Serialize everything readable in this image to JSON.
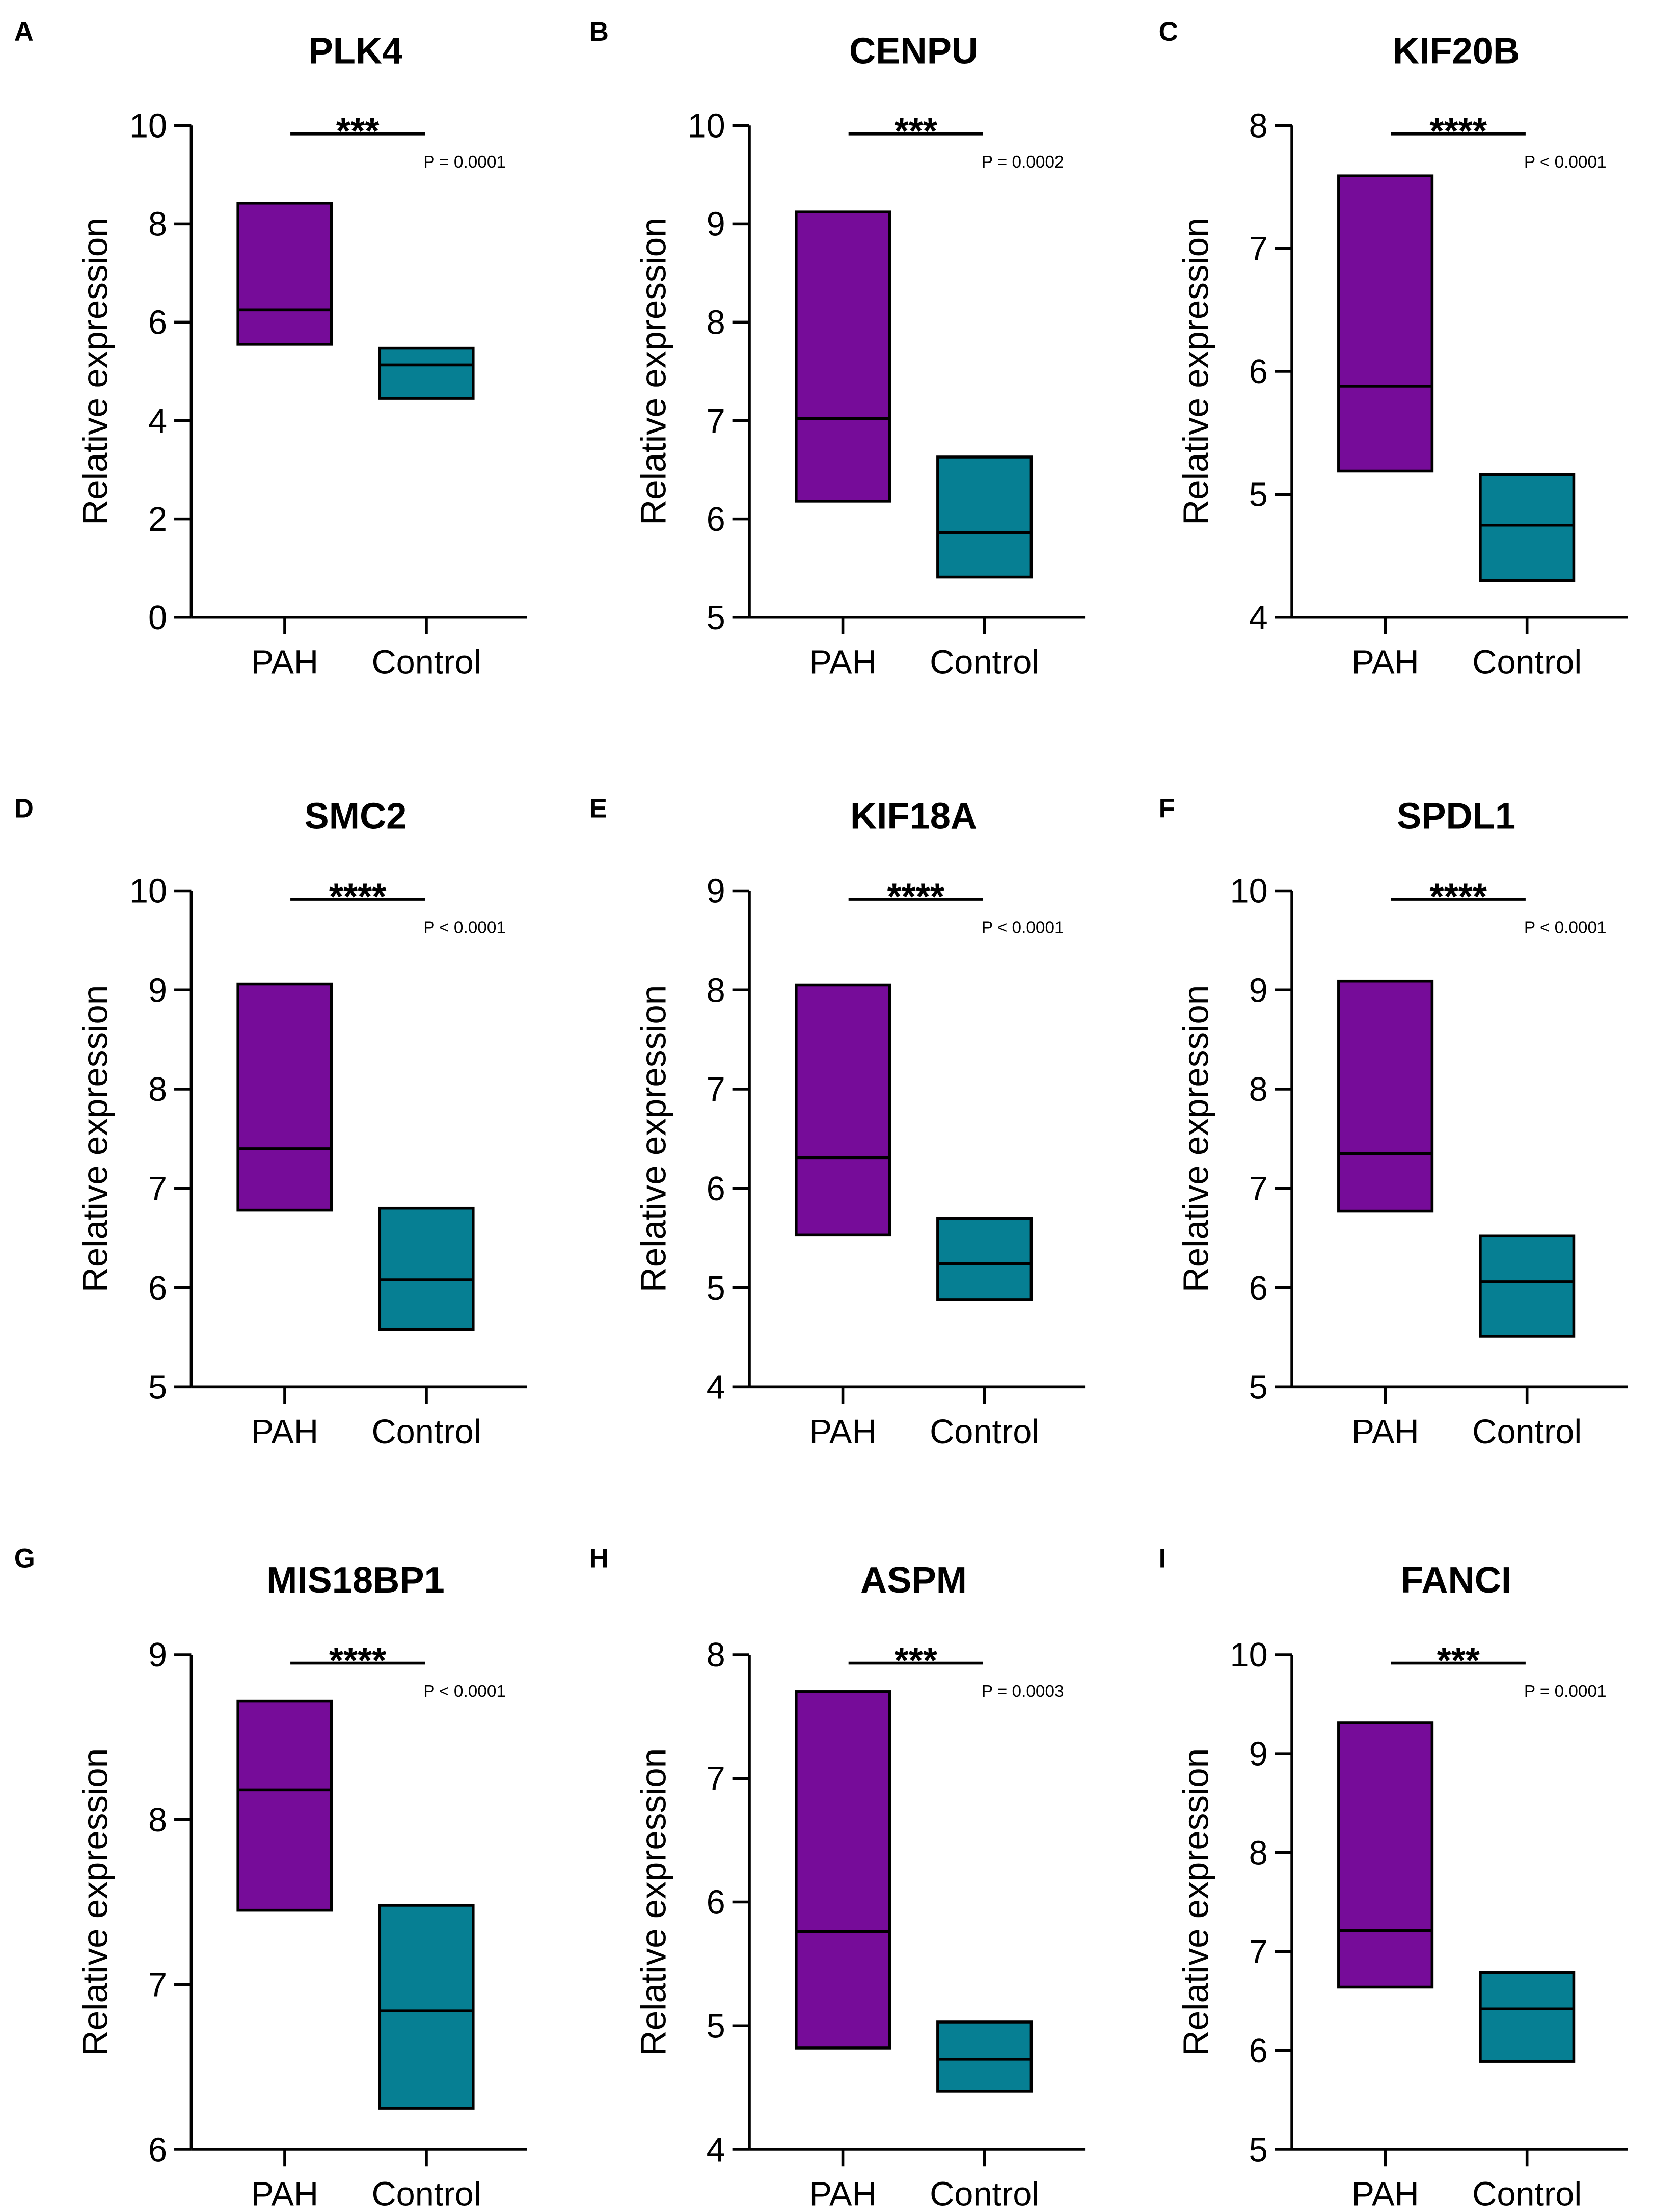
{
  "colors": [
    "#760C99",
    "#067F93"
  ],
  "chart_data": [
    {
      "panel": "A",
      "type": "bar",
      "title": "PLK4",
      "ylabel": "Relative expression",
      "categories": [
        "PAH",
        "Control"
      ],
      "values": [
        {
          "min": 5.55,
          "max": 8.42,
          "median": 6.25
        },
        {
          "min": 4.45,
          "max": 5.47,
          "median": 5.13
        }
      ],
      "ylim": [
        0,
        10
      ],
      "yticks": [
        0,
        2,
        4,
        6,
        8,
        10
      ],
      "significance": "***",
      "p_value": "P = 0.0001"
    },
    {
      "panel": "B",
      "type": "bar",
      "title": "CENPU",
      "ylabel": "Relative expression",
      "categories": [
        "PAH",
        "Control"
      ],
      "values": [
        {
          "min": 6.18,
          "max": 9.12,
          "median": 7.02
        },
        {
          "min": 5.41,
          "max": 6.63,
          "median": 5.86
        }
      ],
      "ylim": [
        5,
        10
      ],
      "yticks": [
        5,
        6,
        7,
        8,
        9,
        10
      ],
      "significance": "***",
      "p_value": "P = 0.0002"
    },
    {
      "panel": "C",
      "type": "bar",
      "title": "KIF20B",
      "ylabel": "Relative expression",
      "categories": [
        "PAH",
        "Control"
      ],
      "values": [
        {
          "min": 5.19,
          "max": 7.59,
          "median": 5.88
        },
        {
          "min": 4.3,
          "max": 5.16,
          "median": 4.75
        }
      ],
      "ylim": [
        4,
        8
      ],
      "yticks": [
        4,
        5,
        6,
        7,
        8
      ],
      "significance": "****",
      "p_value": "P < 0.0001"
    },
    {
      "panel": "D",
      "type": "bar",
      "title": "SMC2",
      "ylabel": "Relative expression",
      "categories": [
        "PAH",
        "Control"
      ],
      "values": [
        {
          "min": 6.78,
          "max": 9.06,
          "median": 7.4
        },
        {
          "min": 5.58,
          "max": 6.8,
          "median": 6.08
        }
      ],
      "ylim": [
        5,
        10
      ],
      "yticks": [
        5,
        6,
        7,
        8,
        9,
        10
      ],
      "significance": "****",
      "p_value": "P < 0.0001"
    },
    {
      "panel": "E",
      "type": "bar",
      "title": "KIF18A",
      "ylabel": "Relative expression",
      "categories": [
        "PAH",
        "Control"
      ],
      "values": [
        {
          "min": 5.53,
          "max": 8.05,
          "median": 6.31
        },
        {
          "min": 4.88,
          "max": 5.7,
          "median": 5.24
        }
      ],
      "ylim": [
        4,
        9
      ],
      "yticks": [
        4,
        5,
        6,
        7,
        8,
        9
      ],
      "significance": "****",
      "p_value": "P < 0.0001"
    },
    {
      "panel": "F",
      "type": "bar",
      "title": "SPDL1",
      "ylabel": "Relative expression",
      "categories": [
        "PAH",
        "Control"
      ],
      "values": [
        {
          "min": 6.77,
          "max": 9.09,
          "median": 7.35
        },
        {
          "min": 5.51,
          "max": 6.52,
          "median": 6.06
        }
      ],
      "ylim": [
        5,
        10
      ],
      "yticks": [
        5,
        6,
        7,
        8,
        9,
        10
      ],
      "significance": "****",
      "p_value": "P < 0.0001"
    },
    {
      "panel": "G",
      "type": "bar",
      "title": "MIS18BP1",
      "ylabel": "Relative expression",
      "categories": [
        "PAH",
        "Control"
      ],
      "values": [
        {
          "min": 7.45,
          "max": 8.72,
          "median": 8.18
        },
        {
          "min": 6.25,
          "max": 7.48,
          "median": 6.84
        }
      ],
      "ylim": [
        6,
        9
      ],
      "yticks": [
        6,
        7,
        8,
        9
      ],
      "significance": "****",
      "p_value": "P < 0.0001"
    },
    {
      "panel": "H",
      "type": "bar",
      "title": "ASPM",
      "ylabel": "Relative expression",
      "categories": [
        "PAH",
        "Control"
      ],
      "values": [
        {
          "min": 4.82,
          "max": 7.7,
          "median": 5.76
        },
        {
          "min": 4.47,
          "max": 5.03,
          "median": 4.73
        }
      ],
      "ylim": [
        4,
        8
      ],
      "yticks": [
        4,
        5,
        6,
        7,
        8
      ],
      "significance": "***",
      "p_value": "P = 0.0003"
    },
    {
      "panel": "I",
      "type": "bar",
      "title": "FANCI",
      "ylabel": "Relative expression",
      "categories": [
        "PAH",
        "Control"
      ],
      "values": [
        {
          "min": 6.64,
          "max": 9.31,
          "median": 7.21
        },
        {
          "min": 5.89,
          "max": 6.79,
          "median": 6.42
        }
      ],
      "ylim": [
        5,
        10
      ],
      "yticks": [
        5,
        6,
        7,
        8,
        9,
        10
      ],
      "significance": "***",
      "p_value": "P = 0.0001"
    }
  ]
}
